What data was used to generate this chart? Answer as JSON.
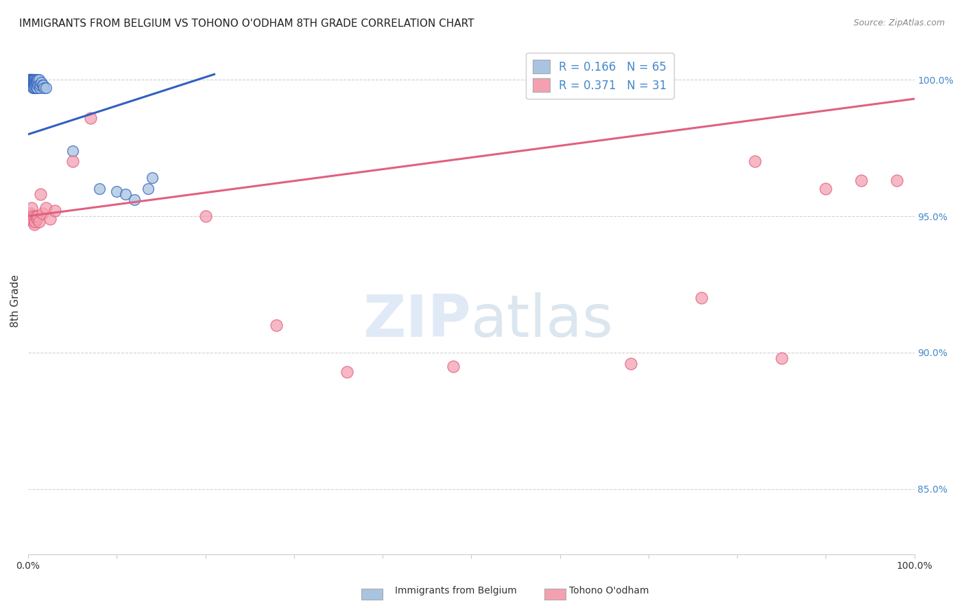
{
  "title": "IMMIGRANTS FROM BELGIUM VS TOHONO O'ODHAM 8TH GRADE CORRELATION CHART",
  "source": "Source: ZipAtlas.com",
  "ylabel": "8th Grade",
  "ylabel_right_ticks": [
    85.0,
    90.0,
    95.0,
    100.0
  ],
  "xlim": [
    0.0,
    1.0
  ],
  "ylim": [
    0.826,
    1.012
  ],
  "blue_label": "Immigrants from Belgium",
  "pink_label": "Tohono O'odham",
  "blue_R": 0.166,
  "blue_N": 65,
  "pink_R": 0.371,
  "pink_N": 31,
  "blue_color": "#a8c4e0",
  "pink_color": "#f4a0b0",
  "blue_line_color": "#3060c0",
  "pink_line_color": "#e06080",
  "background_color": "#ffffff",
  "grid_color": "#d0d0d8",
  "title_fontsize": 11,
  "source_fontsize": 9,
  "blue_trend_x": [
    0.0,
    0.21
  ],
  "blue_trend_y": [
    0.98,
    1.002
  ],
  "pink_trend_x": [
    0.0,
    1.0
  ],
  "pink_trend_y": [
    0.95,
    0.993
  ],
  "blue_x": [
    0.001,
    0.001,
    0.001,
    0.002,
    0.002,
    0.002,
    0.002,
    0.002,
    0.002,
    0.002,
    0.002,
    0.003,
    0.003,
    0.003,
    0.003,
    0.003,
    0.003,
    0.004,
    0.004,
    0.004,
    0.004,
    0.004,
    0.004,
    0.005,
    0.005,
    0.005,
    0.005,
    0.005,
    0.006,
    0.006,
    0.006,
    0.006,
    0.006,
    0.007,
    0.007,
    0.007,
    0.007,
    0.008,
    0.008,
    0.008,
    0.008,
    0.009,
    0.009,
    0.009,
    0.01,
    0.01,
    0.01,
    0.011,
    0.011,
    0.012,
    0.012,
    0.013,
    0.014,
    0.015,
    0.016,
    0.017,
    0.018,
    0.02,
    0.05,
    0.08,
    0.1,
    0.11,
    0.12,
    0.135,
    0.14
  ],
  "blue_y": [
    1.0,
    1.0,
    1.0,
    1.0,
    1.0,
    1.0,
    1.0,
    0.999,
    0.999,
    0.999,
    0.998,
    1.0,
    1.0,
    1.0,
    0.999,
    0.999,
    0.998,
    1.0,
    1.0,
    0.999,
    0.999,
    0.998,
    0.998,
    1.0,
    1.0,
    0.999,
    0.999,
    0.997,
    1.0,
    0.999,
    0.999,
    0.998,
    0.997,
    1.0,
    0.999,
    0.999,
    0.998,
    1.0,
    0.999,
    0.998,
    0.997,
    1.0,
    0.999,
    0.997,
    1.0,
    0.999,
    0.997,
    1.0,
    0.998,
    1.0,
    0.998,
    0.997,
    0.998,
    0.999,
    0.998,
    0.998,
    0.997,
    0.997,
    0.974,
    0.96,
    0.959,
    0.958,
    0.956,
    0.96,
    0.964
  ],
  "pink_x": [
    0.001,
    0.002,
    0.003,
    0.004,
    0.004,
    0.005,
    0.006,
    0.007,
    0.008,
    0.009,
    0.01,
    0.011,
    0.012,
    0.014,
    0.016,
    0.02,
    0.025,
    0.03,
    0.05,
    0.07,
    0.2,
    0.28,
    0.36,
    0.48,
    0.68,
    0.76,
    0.82,
    0.85,
    0.9,
    0.94,
    0.98
  ],
  "pink_y": [
    0.95,
    0.951,
    0.95,
    0.953,
    0.949,
    0.948,
    0.95,
    0.947,
    0.948,
    0.95,
    0.949,
    0.95,
    0.948,
    0.958,
    0.951,
    0.953,
    0.949,
    0.952,
    0.97,
    0.986,
    0.95,
    0.91,
    0.893,
    0.895,
    0.896,
    0.92,
    0.97,
    0.898,
    0.96,
    0.963,
    0.963
  ]
}
